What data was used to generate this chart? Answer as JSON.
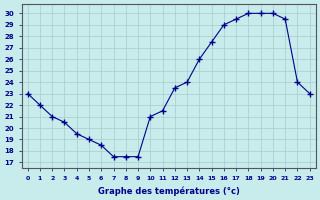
{
  "hours": [
    0,
    1,
    2,
    3,
    4,
    5,
    6,
    7,
    8,
    9,
    10,
    11,
    12,
    13,
    14,
    15,
    16,
    17,
    18,
    19,
    20,
    21,
    22,
    23
  ],
  "temperatures": [
    23,
    22,
    21,
    20.5,
    19.5,
    19,
    18.5,
    17.5,
    17.5,
    17.5,
    21,
    21.5,
    23.5,
    24,
    26,
    27.5,
    29,
    29.5,
    30,
    30,
    30,
    29.5,
    24,
    23
  ],
  "line_color": "#00008B",
  "marker": "+",
  "marker_color": "#00008B",
  "bg_color": "#c8ecec",
  "grid_color": "#a8cccc",
  "xlabel": "Graphe des températures (°c)",
  "xlabel_color": "#00008B",
  "ylabel_ticks": [
    17,
    18,
    19,
    20,
    21,
    22,
    23,
    24,
    25,
    26,
    27,
    28,
    29,
    30
  ],
  "ylim": [
    16.5,
    30.8
  ],
  "xlim": [
    -0.5,
    23.5
  ],
  "spine_color": "#555555"
}
